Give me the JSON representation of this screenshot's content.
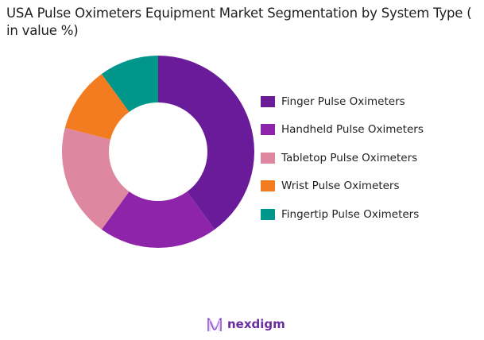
{
  "title": "USA Pulse Oximeters Equipment Market Segmentation by System Type ( in value %)",
  "chart_data": {
    "type": "pie",
    "variant": "donut",
    "title": "USA Pulse Oximeters Equipment Market Segmentation by System Type ( in value %)",
    "categories": [
      "Finger Pulse Oximeters",
      "Handheld Pulse Oximeters",
      "Tabletop Pulse Oximeters",
      "Wrist Pulse Oximeters",
      "Fingertip Pulse Oximeters"
    ],
    "values": [
      40,
      20,
      19,
      11,
      10
    ],
    "colors": [
      "#6a1b9a",
      "#8e24aa",
      "#de87a0",
      "#f47c20",
      "#00968a"
    ],
    "start_angle": "12 o'clock, clockwise",
    "legend_position": "right",
    "data_labels": false
  },
  "legend": {
    "items": [
      {
        "label": "Finger Pulse Oximeters",
        "color": "#6a1b9a"
      },
      {
        "label": "Handheld Pulse Oximeters",
        "color": "#8e24aa"
      },
      {
        "label": "Tabletop Pulse Oximeters",
        "color": "#de87a0"
      },
      {
        "label": "Wrist Pulse Oximeters",
        "color": "#f47c20"
      },
      {
        "label": "Fingertip Pulse Oximeters",
        "color": "#00968a"
      }
    ]
  },
  "branding": {
    "logo_text": "nexdigm",
    "logo_icon": "wave-n-icon",
    "logo_color": "#6a2c9e"
  }
}
